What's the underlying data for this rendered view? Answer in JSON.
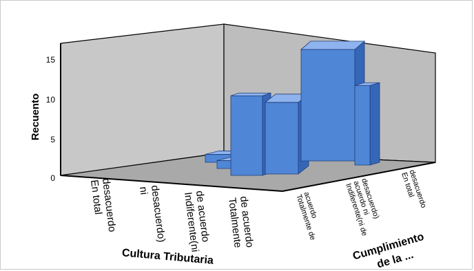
{
  "chart_data": {
    "type": "bar",
    "subtype": "3d-bar",
    "ylabel": "Recuento",
    "xlabel": "Cultura Tributaria",
    "zlabel": "Cumplimiento de la ...",
    "ylim": [
      0,
      17
    ],
    "yticks": [
      "0",
      "5",
      "10",
      "15"
    ],
    "x_categories": [
      [
        "En total",
        "desacuerdo"
      ],
      [
        "ni",
        "desacuerdo)"
      ],
      [
        "Indiferente(ni",
        "de acuerdo"
      ],
      [
        "Totalmente",
        "de acuerdo"
      ]
    ],
    "z_categories": [
      [
        "Totalmente de",
        "acuerdo"
      ],
      [
        "Indiferente(ni de",
        "acuerdo ni",
        "desacuerdo)"
      ],
      [
        "En total",
        "desacuerdo"
      ]
    ],
    "bars": [
      {
        "x": "Totalmente de acuerdo",
        "z": "Indiferente(ni de acuerdo ni desacuerdo)",
        "value": 1
      },
      {
        "x": "Totalmente de acuerdo",
        "z": "Totalmente de acuerdo",
        "value": 1
      },
      {
        "x": "Indiferente(ni de acuerdo",
        "z": "Totalmente de acuerdo",
        "value": 9
      },
      {
        "x": "Totalmente de acuerdo",
        "z": "Indiferente(ni de acuerdo ni desacuerdo)",
        "value": 14
      },
      {
        "x": "Totalmente de acuerdo",
        "z": "Indiferente(ni de acuerdo ni desacuerdo)",
        "value": 10
      },
      {
        "x": "Totalmente de acuerdo",
        "z": "En total desacuerdo",
        "value": 10
      }
    ],
    "grid": false,
    "bar_color": "#4f86d6"
  }
}
